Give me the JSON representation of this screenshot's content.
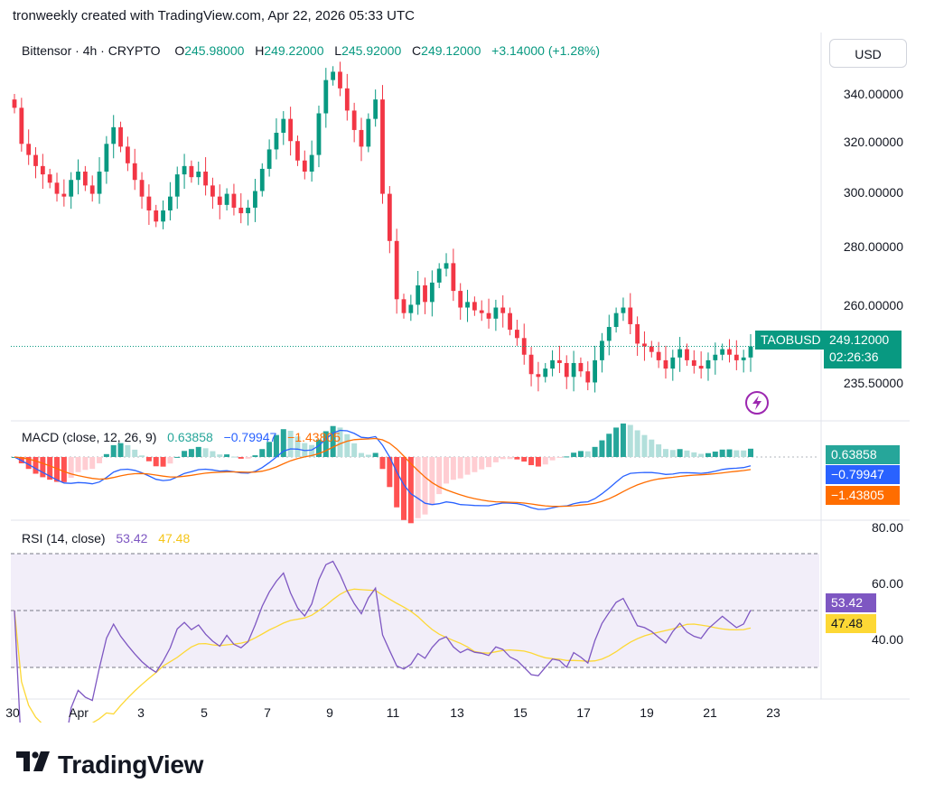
{
  "header": {
    "credit": "tronweekly created with TradingView.com, Apr 22, 2026 05:33 UTC"
  },
  "currency_button": "USD",
  "legend": {
    "symbol": "Bittensor · 4h · CRYPTO",
    "o_label": "O",
    "o_value": "245.98000",
    "h_label": "H",
    "h_value": "249.22000",
    "l_label": "L",
    "l_value": "245.92000",
    "c_label": "C",
    "c_value": "249.12000",
    "change": "+3.14000 (+1.28%)"
  },
  "price_axis": {
    "ticks": [
      "340.00000",
      "320.00000",
      "300.00000",
      "280.00000",
      "260.00000",
      "235.50000"
    ],
    "last_symbol": "TAOBUSD",
    "last_price": "249.12000",
    "countdown": "02:26:36"
  },
  "macd": {
    "title": "MACD (close, 12, 26, 9)",
    "histogram": "0.63858",
    "macd_value": "−0.79947",
    "signal_value": "−1.43805",
    "badge_hist": "0.63858",
    "badge_macd": "−0.79947",
    "badge_signal": "−1.43805"
  },
  "rsi": {
    "title": "RSI (14, close)",
    "rsi_value": "53.42",
    "ma_value": "47.48",
    "axis_ticks": [
      "80.00",
      "60.00",
      "40.00"
    ],
    "badge_rsi": "53.42",
    "badge_ma": "47.48"
  },
  "time_axis": {
    "ticks": [
      "30",
      "Apr",
      "3",
      "5",
      "7",
      "9",
      "11",
      "13",
      "15",
      "17",
      "19",
      "21",
      "23"
    ]
  },
  "brand": {
    "name": "TradingView"
  },
  "colors": {
    "up": "#089981",
    "down": "#f23645",
    "macd": "#2962ff",
    "signal": "#ff6d00",
    "rsi": "#7e57c2",
    "rsi_ma": "#fdd835"
  },
  "chart_data": {
    "type": "candlestick",
    "symbol": "TAOBUSD",
    "timeframe": "4h",
    "y_range": [
      230,
      352
    ],
    "x_labels": [
      "30",
      "Apr",
      "3",
      "5",
      "7",
      "9",
      "11",
      "13",
      "15",
      "17",
      "19",
      "21",
      "23"
    ],
    "close_series": [
      335,
      322,
      318,
      314,
      311,
      308,
      304,
      303,
      309,
      312,
      307,
      304,
      312,
      322,
      328,
      321,
      315,
      309,
      303,
      298,
      294,
      298,
      303,
      311,
      314,
      310,
      312,
      307,
      303,
      300,
      304,
      299,
      297,
      299,
      305,
      313,
      320,
      326,
      331,
      323,
      316,
      312,
      318,
      333,
      345,
      348,
      342,
      334,
      327,
      321,
      331,
      338,
      304,
      287,
      266,
      261,
      264,
      271,
      265,
      272,
      277,
      279,
      269,
      263,
      265,
      262,
      261,
      259,
      263,
      261,
      255,
      252,
      246,
      239,
      238,
      241,
      244,
      243,
      238,
      243,
      240,
      236,
      244,
      251,
      256,
      261,
      263,
      257,
      250,
      249,
      247,
      244,
      241,
      245,
      248,
      244,
      242,
      241,
      244,
      246,
      248,
      246,
      244,
      245,
      249
    ],
    "macd_current": {
      "histogram": 0.63858,
      "macd": -0.79947,
      "signal": -1.43805
    },
    "rsi_current": {
      "rsi": 53.42,
      "ma": 47.48
    },
    "rsi_levels": [
      70,
      50,
      30
    ]
  }
}
